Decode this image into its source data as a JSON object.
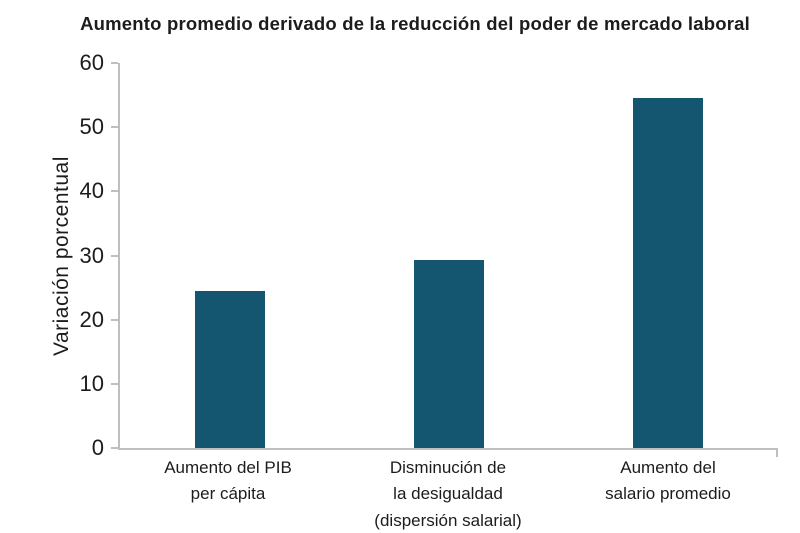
{
  "chart_data": {
    "type": "bar",
    "title": "Aumento promedio derivado de la reducción del poder de mercado laboral",
    "ylabel": "Variación porcentual",
    "xlabel": "",
    "ylim": [
      0,
      60
    ],
    "yticks": [
      0,
      10,
      20,
      30,
      40,
      50,
      60
    ],
    "grid": false,
    "legend": "none",
    "categories": [
      "Aumento del PIB\nper cápita",
      "Disminución de\nla desigualdad\n(dispersión salarial)",
      "Aumento del\nsalario promedio"
    ],
    "values": [
      24.5,
      29.3,
      54.5
    ]
  },
  "colors": {
    "bar": "#14566F",
    "axis": "#bfbfbf",
    "text": "#1c1c1c",
    "background": "#ffffff"
  }
}
